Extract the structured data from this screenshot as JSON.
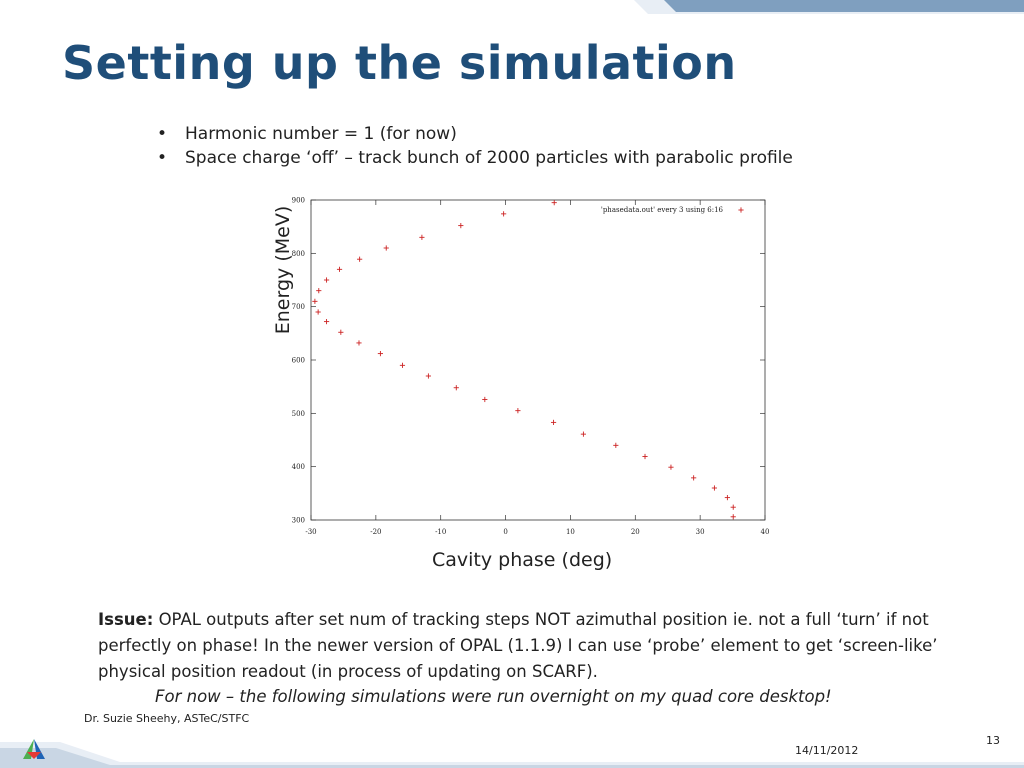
{
  "slide": {
    "title": "Setting up the simulation",
    "bullets": [
      "Harmonic number = 1 (for now)",
      "Space charge ‘off’ – track bunch of 2000 particles with parabolic profile"
    ],
    "issue_label": "Issue:",
    "issue_text": " OPAL outputs after set num of tracking steps NOT azimuthal position ie. not a full ‘turn’ if not perfectly on phase! In the newer version of OPAL (1.1.9) I can use ‘probe’ element to get ‘screen-like’ physical position readout  (in process of updating on SCARF).",
    "note": "For now – the following simulations were run overnight on my quad core desktop!",
    "author": "Dr. Suzie Sheehy, ASTeC/STFC",
    "page": "13",
    "date": "14/11/2012"
  },
  "colors": {
    "title": "#1f4e79",
    "band": "#7f9fbf",
    "marker": "#cc2222"
  },
  "chart_data": {
    "type": "scatter",
    "xlabel": "Cavity phase (deg)",
    "ylabel": "Energy (MeV)",
    "xlim": [
      -30,
      40
    ],
    "ylim": [
      300,
      900
    ],
    "xticks": [
      "-30",
      "-20",
      "-10",
      "0",
      "10",
      "20",
      "30",
      "40"
    ],
    "yticks": [
      "300",
      "400",
      "500",
      "600",
      "700",
      "800",
      "900"
    ],
    "legend": "'phasedata.out' every 3 using 6:16",
    "legend_position": "top-right",
    "series": [
      {
        "name": "'phasedata.out' every 3 using 6:16",
        "x": [
          7.5,
          -0.3,
          -6.9,
          -12.9,
          -18.4,
          -22.5,
          -25.6,
          -27.6,
          -28.8,
          -29.4,
          -28.9,
          -27.6,
          -25.4,
          -22.6,
          -19.3,
          -15.9,
          -11.9,
          -7.6,
          -3.2,
          1.9,
          7.4,
          12.0,
          17.0,
          21.5,
          25.5,
          29.0,
          32.2,
          34.2,
          35.1,
          35.1
        ],
        "y": [
          895,
          874,
          852,
          830,
          810,
          789,
          770,
          750,
          730,
          710,
          690,
          672,
          652,
          632,
          612,
          590,
          570,
          548,
          526,
          505,
          483,
          461,
          440,
          419,
          399,
          379,
          360,
          342,
          324,
          306
        ]
      }
    ]
  }
}
